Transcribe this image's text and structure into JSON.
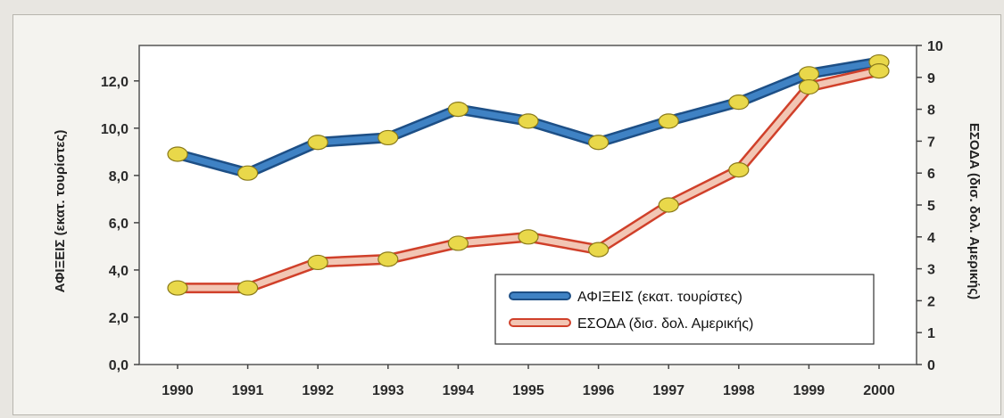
{
  "chart_data": {
    "type": "line",
    "title": "",
    "x": [
      "1990",
      "1991",
      "1992",
      "1993",
      "1994",
      "1995",
      "1996",
      "1997",
      "1998",
      "1999",
      "2000"
    ],
    "x_tick_labels": [
      "1990",
      "1991",
      "1992",
      "1993",
      "1994",
      "1995",
      "1996",
      "1997",
      "1998",
      "1999",
      "2000"
    ],
    "series": [
      {
        "name": "ΑΦΙΞΕΙΣ (εκατ. τουρίστες)",
        "axis": "left",
        "color": "#3f82c4",
        "outline": "#1d4f86",
        "values": [
          8.9,
          8.1,
          9.4,
          9.6,
          10.8,
          10.3,
          9.4,
          10.3,
          11.1,
          12.3,
          12.8
        ]
      },
      {
        "name": "ΕΣΟΔΑ (δισ. δολ. Αμερικής)",
        "axis": "right",
        "color": "#f2c6b4",
        "outline": "#d0402a",
        "values": [
          2.4,
          2.4,
          3.2,
          3.3,
          3.8,
          4.0,
          3.6,
          5.0,
          6.1,
          8.7,
          9.2
        ]
      }
    ],
    "y_left": {
      "label": "ΑΦΙΞΕΙΣ (εκατ. τουρίστες)",
      "ylim": [
        0,
        13.5
      ],
      "ticks": [
        0,
        2,
        4,
        6,
        8,
        10,
        12
      ],
      "tick_labels": [
        "0,0",
        "2,0",
        "4,0",
        "6,0",
        "8,0",
        "10,0",
        "12,0"
      ]
    },
    "y_right": {
      "label": "ΕΣΟΔΑ (δισ. δολ. Αμερικής)",
      "ylim": [
        0,
        10
      ],
      "ticks": [
        0,
        1,
        2,
        3,
        4,
        5,
        6,
        7,
        8,
        9,
        10
      ],
      "tick_labels": [
        "0",
        "1",
        "2",
        "3",
        "4",
        "5",
        "6",
        "7",
        "8",
        "9",
        "10"
      ]
    },
    "grid": false,
    "legend": "bottom-right",
    "marker_color": "#e9d84a"
  }
}
